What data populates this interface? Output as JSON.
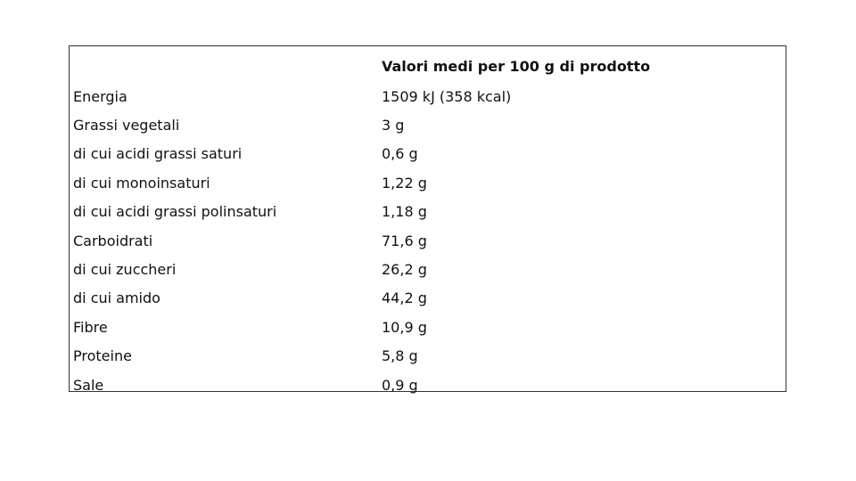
{
  "table": {
    "header": [
      "",
      "Valori medi per 100 g di prodotto"
    ],
    "rows": [
      [
        "Energia",
        "1509 kJ (358 kcal)"
      ],
      [
        "Grassi vegetali",
        "3 g"
      ],
      [
        "di cui acidi grassi saturi",
        "0,6 g"
      ],
      [
        "di cui monoinsaturi",
        "1,22 g"
      ],
      [
        "di cui acidi grassi polinsaturi",
        "1,18 g"
      ],
      [
        "Carboidrati",
        "71,6 g"
      ],
      [
        "di cui zuccheri",
        "26,2 g"
      ],
      [
        "di cui amido",
        "44,2 g"
      ],
      [
        "Fibre",
        "10,9 g"
      ],
      [
        "Proteine",
        "5,8 g"
      ],
      [
        "Sale",
        "0,9 g"
      ]
    ]
  }
}
